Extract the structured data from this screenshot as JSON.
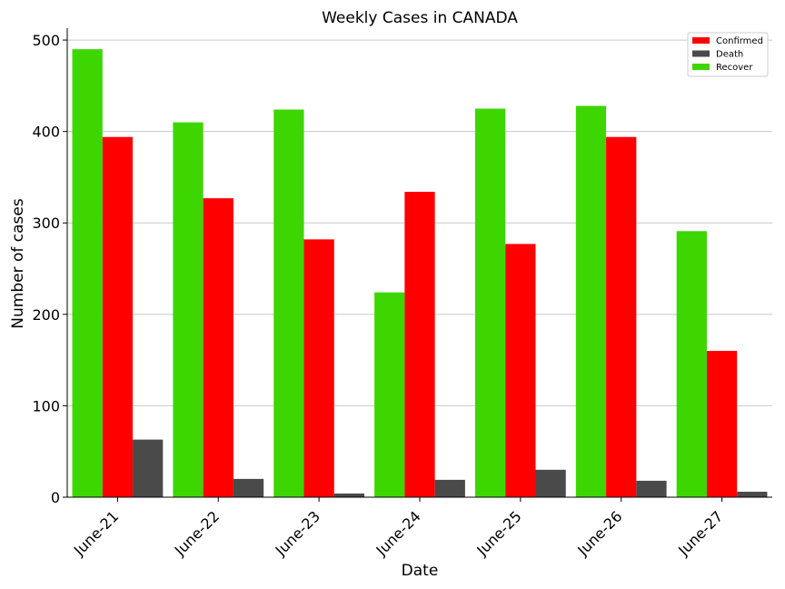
{
  "chart_data": {
    "type": "bar",
    "title": "Weekly Cases in CANADA",
    "xlabel": "Date",
    "ylabel": "Number of cases",
    "categories": [
      "June-21",
      "June-22",
      "June-23",
      "June-24",
      "June-25",
      "June-26",
      "June-27"
    ],
    "series": [
      {
        "name": "Recover",
        "color": "#3dd600",
        "values": [
          490,
          410,
          424,
          224,
          425,
          428,
          291
        ]
      },
      {
        "name": "Confirmed",
        "color": "#ff0000",
        "values": [
          394,
          327,
          282,
          334,
          277,
          394,
          160
        ]
      },
      {
        "name": "Death",
        "color": "#4a4a4a",
        "values": [
          63,
          20,
          4,
          19,
          30,
          18,
          6
        ]
      }
    ],
    "legend_order": [
      "Confirmed",
      "Death",
      "Recover"
    ],
    "ylim": [
      0,
      513
    ],
    "yticks": [
      0,
      100,
      200,
      300,
      400,
      500
    ],
    "grid": "y",
    "legend_position": "top-right"
  }
}
